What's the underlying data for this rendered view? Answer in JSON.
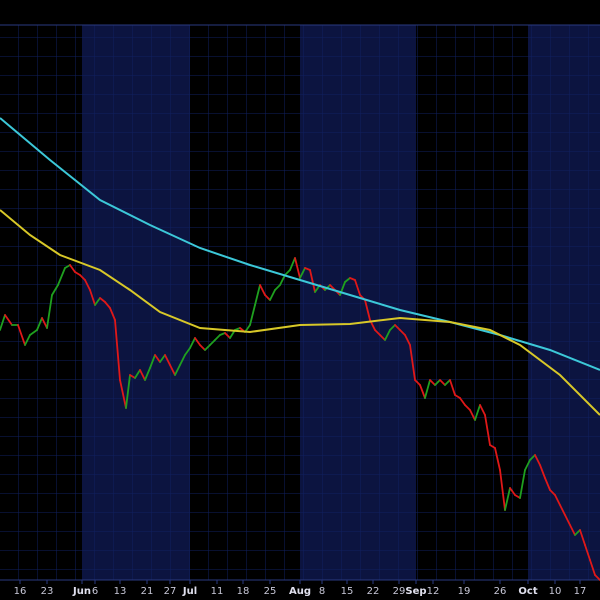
{
  "chart_data": {
    "type": "line",
    "xlim": [
      0,
      600
    ],
    "ylim": [
      20,
      575
    ],
    "xticks": [
      {
        "value": 20,
        "label": "16"
      },
      {
        "value": 47,
        "label": "23"
      },
      {
        "value": 82,
        "label": "Jun"
      },
      {
        "value": 95,
        "label": "6"
      },
      {
        "value": 120,
        "label": "13"
      },
      {
        "value": 147,
        "label": "21"
      },
      {
        "value": 170,
        "label": "27"
      },
      {
        "value": 190,
        "label": "Jul"
      },
      {
        "value": 217,
        "label": "11"
      },
      {
        "value": 243,
        "label": "18"
      },
      {
        "value": 270,
        "label": "25"
      },
      {
        "value": 300,
        "label": "Aug"
      },
      {
        "value": 322,
        "label": "8"
      },
      {
        "value": 347,
        "label": "15"
      },
      {
        "value": 373,
        "label": "22"
      },
      {
        "value": 399,
        "label": "29"
      },
      {
        "value": 416,
        "label": "Sep"
      },
      {
        "value": 433,
        "label": "12"
      },
      {
        "value": 464,
        "label": "19"
      },
      {
        "value": 500,
        "label": "26"
      },
      {
        "value": 528,
        "label": "Oct"
      },
      {
        "value": 555,
        "label": "10"
      },
      {
        "value": 580,
        "label": "17"
      }
    ],
    "up_color": "#1fa01f",
    "down_color": "#e01818",
    "series": [
      {
        "kind": "price",
        "x": [
          0,
          5,
          12,
          18,
          25,
          30,
          37,
          42,
          47,
          52,
          58,
          65,
          70,
          75,
          80,
          85,
          90,
          95,
          100,
          105,
          110,
          115,
          120,
          126,
          130,
          135,
          140,
          145,
          150,
          155,
          160,
          165,
          170,
          175,
          180,
          185,
          190,
          195,
          200,
          205,
          210,
          215,
          220,
          225,
          230,
          235,
          240,
          245,
          250,
          255,
          260,
          265,
          270,
          275,
          280,
          285,
          290,
          295,
          300,
          305,
          310,
          315,
          320,
          325,
          330,
          335,
          340,
          345,
          350,
          355,
          360,
          365,
          370,
          375,
          380,
          385,
          390,
          395,
          400,
          405,
          410,
          415,
          420,
          425,
          430,
          435,
          440,
          445,
          450,
          455,
          460,
          465,
          470,
          475,
          480,
          485,
          490,
          495,
          500,
          505,
          510,
          515,
          520,
          525,
          530,
          535,
          540,
          545,
          550,
          555,
          560,
          565,
          570,
          575,
          580,
          585,
          590,
          595,
          600
        ],
        "values": [
          270,
          285,
          275,
          275,
          255,
          265,
          270,
          282,
          272,
          305,
          315,
          332,
          335,
          328,
          325,
          320,
          310,
          295,
          302,
          298,
          292,
          280,
          220,
          192,
          225,
          222,
          230,
          220,
          232,
          245,
          238,
          245,
          235,
          225,
          235,
          245,
          252,
          262,
          255,
          250,
          255,
          260,
          265,
          267,
          262,
          270,
          272,
          268,
          275,
          295,
          315,
          305,
          300,
          310,
          315,
          325,
          330,
          342,
          322,
          332,
          330,
          308,
          315,
          310,
          315,
          310,
          305,
          318,
          322,
          320,
          305,
          300,
          280,
          270,
          265,
          260,
          270,
          275,
          270,
          265,
          255,
          220,
          215,
          202,
          220,
          215,
          220,
          215,
          220,
          205,
          202,
          195,
          190,
          180,
          195,
          185,
          155,
          152,
          130,
          90,
          112,
          105,
          102,
          130,
          140,
          145,
          135,
          122,
          110,
          105,
          95,
          85,
          75,
          65,
          70,
          55,
          40,
          25,
          20
        ]
      },
      {
        "kind": "ma",
        "color": "#3cc8d8",
        "x": [
          0,
          50,
          100,
          150,
          200,
          250,
          300,
          350,
          400,
          450,
          500,
          550,
          600
        ],
        "values": [
          482,
          440,
          400,
          375,
          352,
          335,
          320,
          305,
          290,
          278,
          265,
          250,
          230
        ]
      },
      {
        "kind": "ma",
        "color": "#d8c828",
        "x": [
          0,
          30,
          60,
          100,
          130,
          160,
          200,
          250,
          300,
          350,
          400,
          450,
          490,
          520,
          560,
          600
        ],
        "values": [
          390,
          365,
          345,
          330,
          310,
          288,
          272,
          268,
          275,
          276,
          282,
          278,
          270,
          255,
          225,
          185
        ]
      }
    ]
  }
}
